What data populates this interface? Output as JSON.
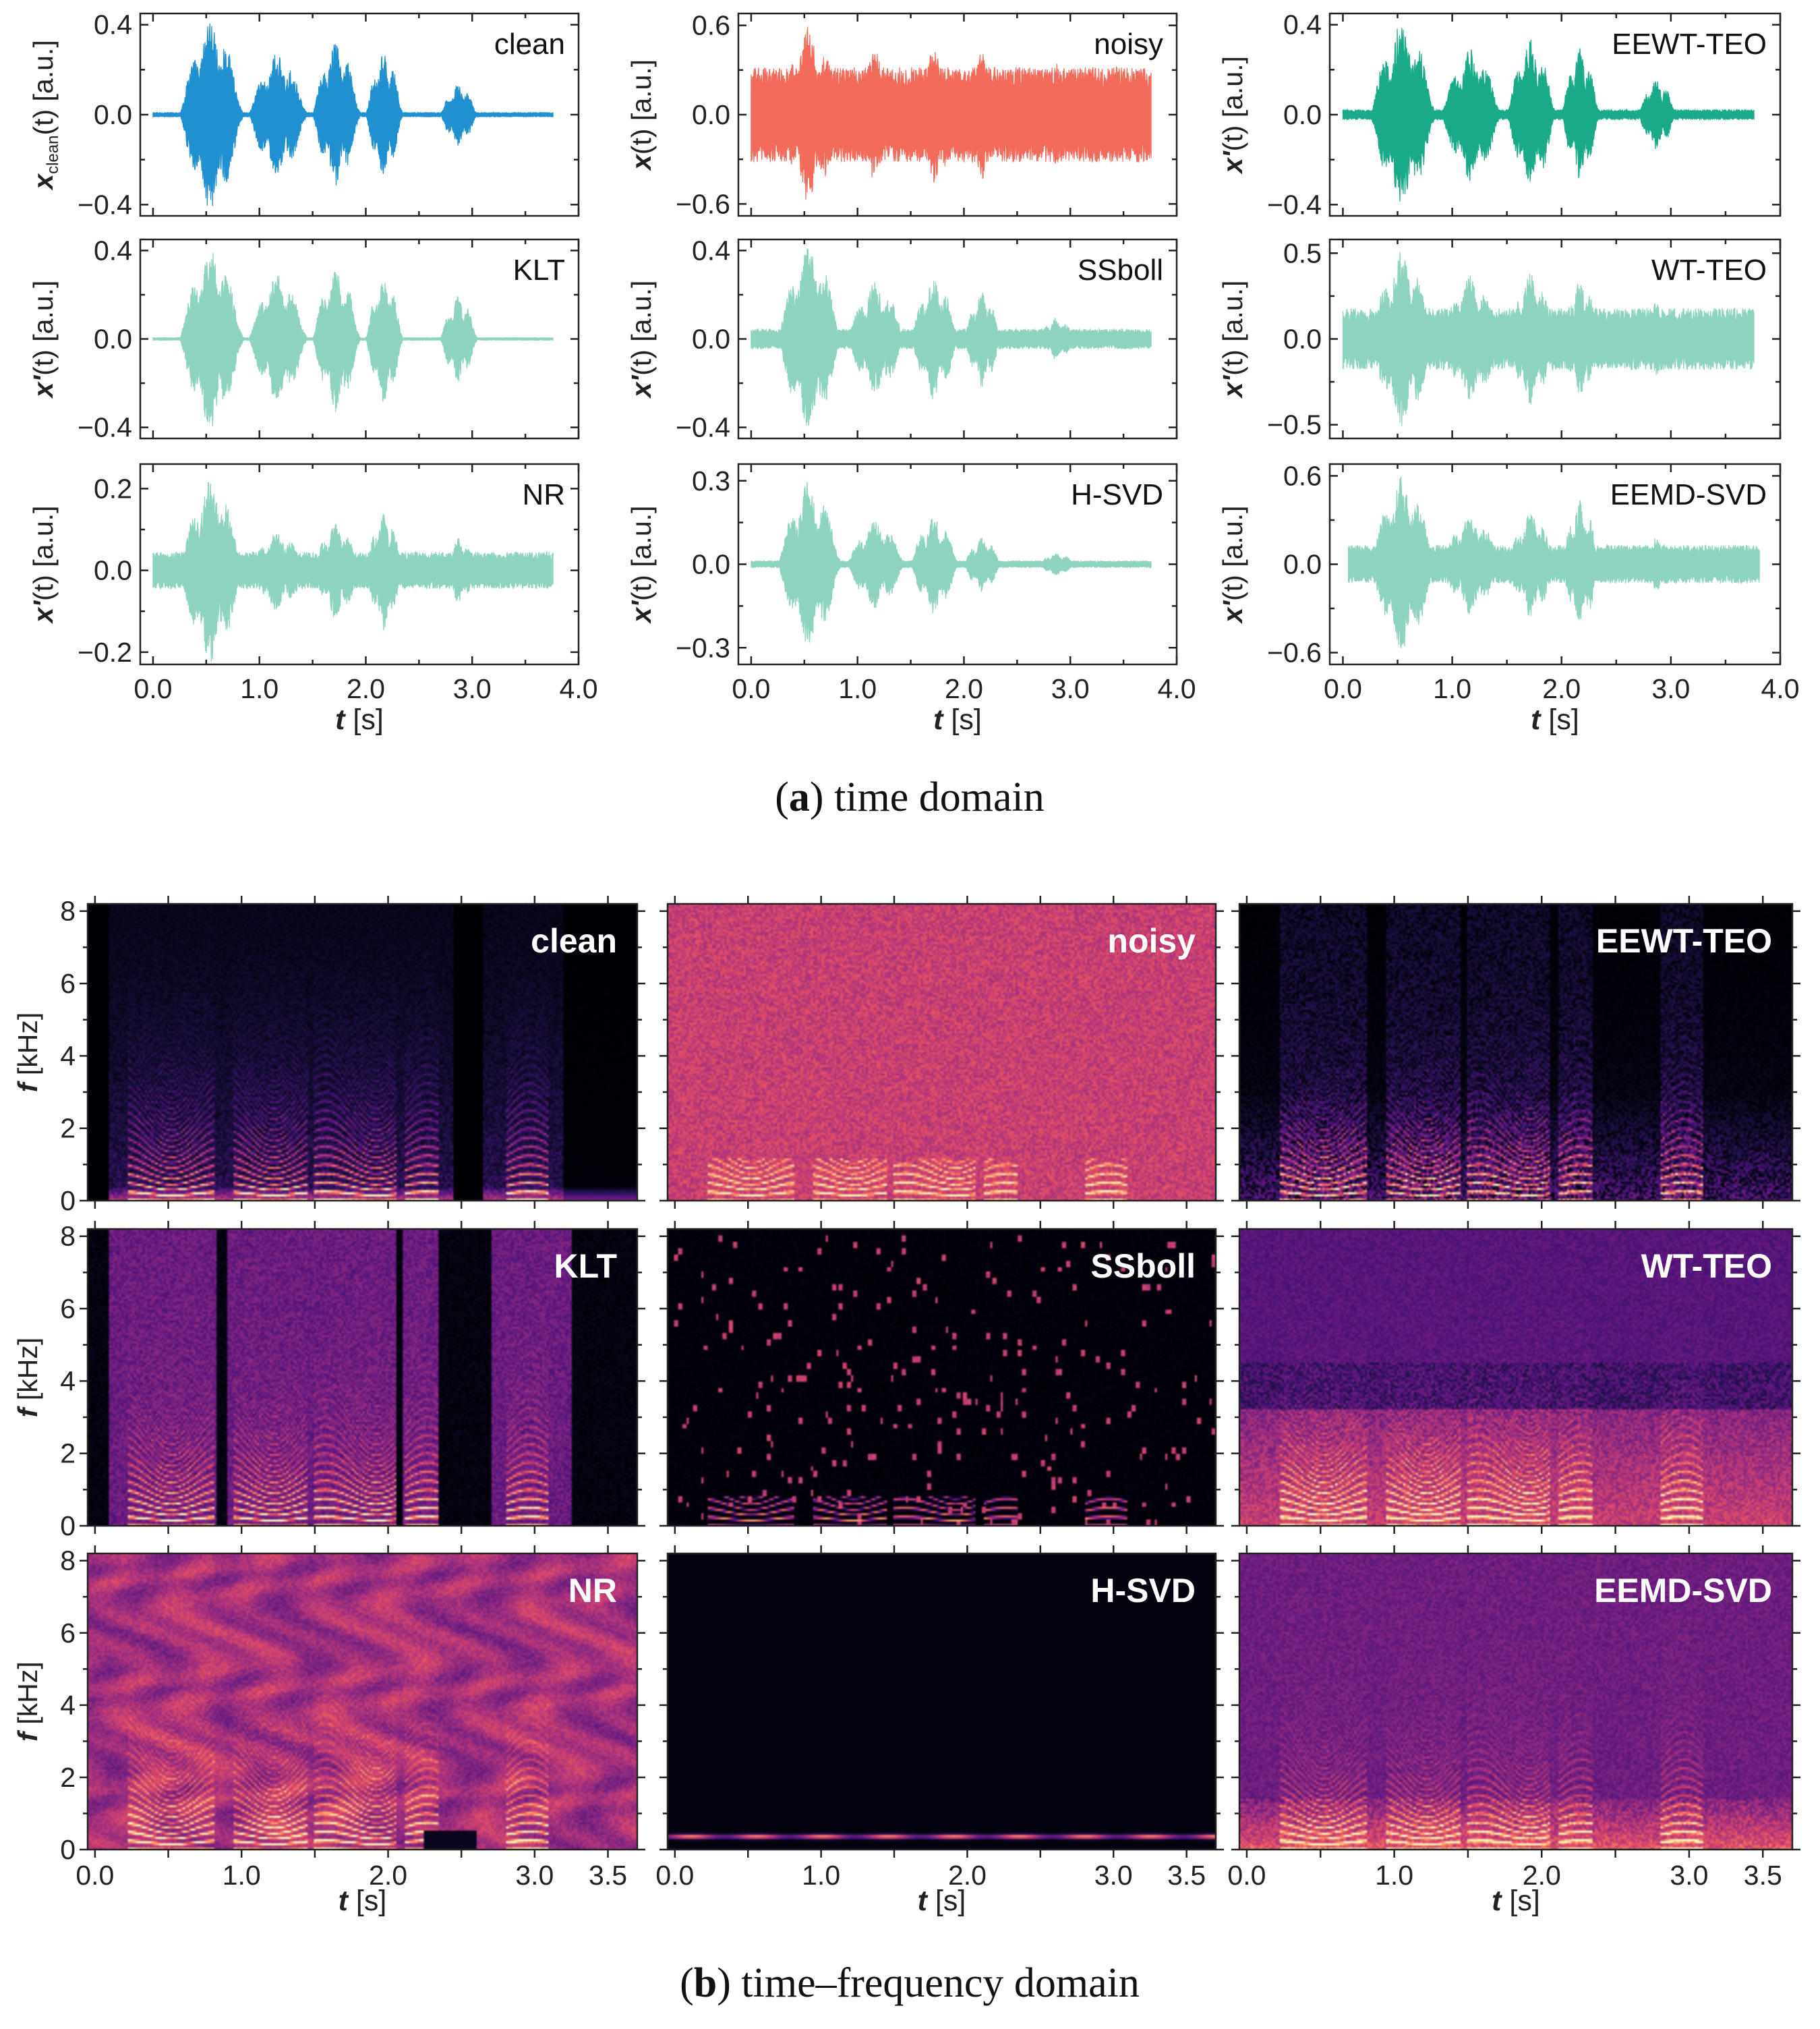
{
  "chart_data": [
    {
      "type": "line",
      "group": "time",
      "caption_letter": "a",
      "caption_rest": " time domain",
      "x_label": "t",
      "x_unit": "[s]",
      "xticks": [
        "0.0",
        "1.0",
        "2.0",
        "3.0",
        "4.0"
      ],
      "xlim": [
        -0.12,
        4.0
      ],
      "panels": [
        {
          "label": "clean",
          "ylabel": "x",
          "ylabel_sub": "clean",
          "ylabel_rest": "(t) [a.u.]",
          "yticks": [
            "0.4",
            "0.0",
            "−0.4"
          ],
          "ytick_values": [
            0.4,
            0.0,
            -0.4
          ],
          "ylim": [
            -0.45,
            0.45
          ],
          "color": "#2090d0",
          "duration": 3.76,
          "t_start": 0.0,
          "noise": 0.01,
          "segments": [
            [
              0.25,
              0.85,
              0.43
            ],
            [
              0.9,
              1.45,
              0.28
            ],
            [
              1.5,
              1.95,
              0.33
            ],
            [
              2.0,
              2.35,
              0.28
            ],
            [
              2.7,
              3.05,
              0.14
            ]
          ]
        },
        {
          "label": "noisy",
          "ylabel": "x",
          "ylabel_sub": "",
          "ylabel_rest": "(t) [a.u.]",
          "yticks": [
            "0.6",
            "0.0",
            "−0.6"
          ],
          "ytick_values": [
            0.6,
            0.0,
            -0.6
          ],
          "ylim": [
            -0.68,
            0.68
          ],
          "color": "#f26b5b",
          "duration": 3.76,
          "t_start": 0.0,
          "noise": 0.32,
          "segments": [
            [
              0.25,
              0.85,
              0.6
            ],
            [
              0.9,
              1.45,
              0.45
            ],
            [
              1.5,
              1.95,
              0.5
            ],
            [
              2.0,
              2.35,
              0.45
            ],
            [
              2.7,
              3.05,
              0.38
            ]
          ]
        },
        {
          "label": "EEWT-TEO",
          "ylabel": "x'",
          "ylabel_sub": "",
          "ylabel_rest": "(t) [a.u.]",
          "yticks": [
            "0.4",
            "0.0",
            "−0.4"
          ],
          "ytick_values": [
            0.4,
            0.0,
            -0.4
          ],
          "ylim": [
            -0.45,
            0.45
          ],
          "color": "#1aaa8a",
          "duration": 3.76,
          "t_start": 0.0,
          "noise": 0.022,
          "segments": [
            [
              0.25,
              0.85,
              0.43
            ],
            [
              0.9,
              1.45,
              0.3
            ],
            [
              1.5,
              1.95,
              0.34
            ],
            [
              2.0,
              2.35,
              0.3
            ],
            [
              2.7,
              3.05,
              0.16
            ]
          ]
        },
        {
          "label": "KLT",
          "ylabel": "x'",
          "ylabel_sub": "",
          "ylabel_rest": "(t) [a.u.]",
          "yticks": [
            "0.4",
            "0.0",
            "−0.4"
          ],
          "ytick_values": [
            0.4,
            0.0,
            -0.4
          ],
          "ylim": [
            -0.45,
            0.45
          ],
          "color": "#8dd3c0",
          "duration": 3.76,
          "t_start": 0.0,
          "noise": 0.006,
          "segments": [
            [
              0.25,
              0.85,
              0.42
            ],
            [
              0.9,
              1.45,
              0.3
            ],
            [
              1.5,
              1.95,
              0.34
            ],
            [
              2.0,
              2.35,
              0.3
            ],
            [
              2.7,
              3.05,
              0.2
            ]
          ]
        },
        {
          "label": "SSboll",
          "ylabel": "x'",
          "ylabel_sub": "",
          "ylabel_rest": "(t) [a.u.]",
          "yticks": [
            "0.4",
            "0.0",
            "−0.4"
          ],
          "ytick_values": [
            0.4,
            0.0,
            -0.4
          ],
          "ylim": [
            -0.45,
            0.45
          ],
          "color": "#8dd3c0",
          "duration": 3.76,
          "t_start": 0.0,
          "noise": 0.045,
          "segments": [
            [
              0.25,
              0.85,
              0.43
            ],
            [
              0.9,
              1.45,
              0.26
            ],
            [
              1.5,
              1.95,
              0.28
            ],
            [
              2.0,
              2.35,
              0.22
            ],
            [
              2.7,
              3.05,
              0.1
            ]
          ]
        },
        {
          "label": "WT-TEO",
          "ylabel": "x'",
          "ylabel_sub": "",
          "ylabel_rest": "(t) [a.u.]",
          "yticks": [
            "0.5",
            "0.0",
            "−0.5"
          ],
          "ytick_values": [
            0.5,
            0.0,
            -0.5
          ],
          "ylim": [
            -0.58,
            0.58
          ],
          "color": "#8dd3c0",
          "duration": 3.76,
          "t_start": 0.0,
          "noise": 0.18,
          "segments": [
            [
              0.25,
              0.85,
              0.52
            ],
            [
              0.9,
              1.45,
              0.38
            ],
            [
              1.5,
              1.95,
              0.4
            ],
            [
              2.0,
              2.35,
              0.36
            ],
            [
              2.7,
              3.05,
              0.22
            ]
          ]
        },
        {
          "label": "NR",
          "ylabel": "x'",
          "ylabel_sub": "",
          "ylabel_rest": "(t) [a.u.]",
          "yticks": [
            "0.2",
            "0.0",
            "−0.2"
          ],
          "ytick_values": [
            0.2,
            0.0,
            -0.2
          ],
          "ylim": [
            -0.23,
            0.26
          ],
          "color": "#8dd3c0",
          "duration": 3.76,
          "t_start": 0.0,
          "noise": 0.045,
          "segments": [
            [
              0.25,
              0.85,
              0.23
            ],
            [
              0.9,
              1.45,
              0.1
            ],
            [
              1.5,
              1.95,
              0.12
            ],
            [
              2.0,
              2.35,
              0.15
            ],
            [
              2.7,
              3.05,
              0.08
            ]
          ]
        },
        {
          "label": "H-SVD",
          "ylabel": "x'",
          "ylabel_sub": "",
          "ylabel_rest": "(t) [a.u.]",
          "yticks": [
            "0.3",
            "0.0",
            "−0.3"
          ],
          "ytick_values": [
            0.3,
            0.0,
            -0.3
          ],
          "ylim": [
            -0.36,
            0.36
          ],
          "color": "#8dd3c0",
          "duration": 3.76,
          "t_start": 0.0,
          "noise": 0.012,
          "segments": [
            [
              0.25,
              0.85,
              0.3
            ],
            [
              0.9,
              1.45,
              0.16
            ],
            [
              1.5,
              1.95,
              0.18
            ],
            [
              2.0,
              2.35,
              0.1
            ],
            [
              2.7,
              3.05,
              0.04
            ]
          ]
        },
        {
          "label": "EEMD-SVD",
          "ylabel": "x'",
          "ylabel_sub": "",
          "ylabel_rest": "(t) [a.u.]",
          "yticks": [
            "0.6",
            "0.0",
            "−0.6"
          ],
          "ytick_values": [
            0.6,
            0.0,
            -0.6
          ],
          "ylim": [
            -0.68,
            0.68
          ],
          "color": "#8dd3c0",
          "duration": 3.76,
          "t_start": 0.05,
          "noise": 0.13,
          "segments": [
            [
              0.25,
              0.85,
              0.6
            ],
            [
              0.9,
              1.45,
              0.35
            ],
            [
              1.5,
              1.95,
              0.36
            ],
            [
              2.0,
              2.35,
              0.45
            ],
            [
              2.7,
              3.05,
              0.2
            ]
          ]
        }
      ]
    },
    {
      "type": "heatmap",
      "group": "time-frequency",
      "caption_letter": "b",
      "caption_rest": " time–frequency domain",
      "x_label": "t",
      "x_unit": "[s]",
      "y_label": "f",
      "y_unit": "[kHz]",
      "xticks": [
        "0.0",
        "1.0",
        "2.0",
        "3.0",
        "3.5"
      ],
      "xtick_values": [
        0.0,
        1.0,
        2.0,
        3.0,
        3.5
      ],
      "xlim": [
        -0.05,
        3.7
      ],
      "yticks": [
        "8",
        "6",
        "4",
        "2",
        "0"
      ],
      "ytick_values": [
        8,
        6,
        4,
        2,
        0
      ],
      "ylim": [
        0,
        8.2
      ],
      "colormap": "magma",
      "panels": [
        {
          "label": "clean",
          "style": "clean"
        },
        {
          "label": "noisy",
          "style": "noisy"
        },
        {
          "label": "EEWT-TEO",
          "style": "eewt"
        },
        {
          "label": "KLT",
          "style": "klt"
        },
        {
          "label": "SSboll",
          "style": "ssboll"
        },
        {
          "label": "WT-TEO",
          "style": "wtteo"
        },
        {
          "label": "NR",
          "style": "nr"
        },
        {
          "label": "H-SVD",
          "style": "hsvd"
        },
        {
          "label": "EEMD-SVD",
          "style": "eemd"
        }
      ]
    }
  ]
}
